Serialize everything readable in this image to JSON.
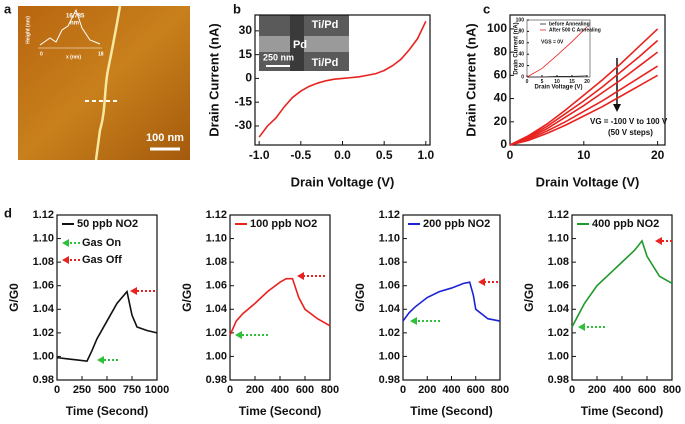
{
  "panel_a": {
    "label": "a",
    "inset_labels": [
      "Height (nm)",
      "16.785",
      "nm",
      "0",
      "x (nm)",
      "18"
    ],
    "scale_bar": "100 nm"
  },
  "panel_b_inset": {
    "labels": [
      "Ti/Pd",
      "Pd",
      "250 nm",
      "Ti/Pd"
    ]
  },
  "chart_data": [
    {
      "type": "line",
      "panel_label": "b",
      "xlabel": "Drain Voltage (V)",
      "ylabel": "Drain Current (nA)",
      "x": [
        -1.0,
        -0.9,
        -0.8,
        -0.7,
        -0.6,
        -0.5,
        -0.4,
        -0.3,
        -0.2,
        -0.1,
        0.0,
        0.1,
        0.2,
        0.3,
        0.4,
        0.5,
        0.6,
        0.7,
        0.8,
        0.9,
        1.0
      ],
      "series": [
        {
          "color": "#e8231f",
          "values": [
            -37,
            -30,
            -25,
            -18,
            -12,
            -8,
            -5,
            -3,
            -1.5,
            -0.5,
            0,
            0.5,
            1,
            2,
            3,
            5,
            8,
            12,
            18,
            25,
            36
          ]
        }
      ],
      "xlim": [
        -1.05,
        1.05
      ],
      "ylim": [
        -42,
        40
      ],
      "xticks": [
        {
          "value": -1.0,
          "label": "-1.0"
        },
        -0.5,
        {
          "value": 0,
          "label": "0.0"
        },
        0.5,
        {
          "value": 1.0,
          "label": "1.0"
        }
      ],
      "yticks": [
        -30,
        -15,
        0,
        15,
        30
      ]
    },
    {
      "type": "line",
      "panel_label": "c",
      "xlabel": "Drain Voltage (V)",
      "ylabel": "Drain Current (nA)",
      "x": [
        0,
        2.5,
        5,
        7.5,
        10,
        12.5,
        15,
        17.5,
        20
      ],
      "series": [
        {
          "color": "#e8231f",
          "values": [
            0,
            4,
            10,
            17,
            25,
            33,
            42,
            51,
            60
          ]
        },
        {
          "color": "#e8231f",
          "values": [
            0,
            5,
            12,
            20,
            29,
            38,
            48,
            58,
            68
          ]
        },
        {
          "color": "#e8231f",
          "values": [
            0,
            6,
            14,
            24,
            34,
            45,
            56,
            68,
            80
          ]
        },
        {
          "color": "#e8231f",
          "values": [
            0,
            7,
            16,
            27,
            38,
            50,
            63,
            76,
            90
          ]
        },
        {
          "color": "#e8231f",
          "values": [
            0,
            8,
            18,
            30,
            43,
            56,
            70,
            85,
            100
          ]
        }
      ],
      "xlim": [
        0,
        21
      ],
      "ylim": [
        0,
        112
      ],
      "xticks": [
        0,
        10,
        20
      ],
      "yticks": [
        0,
        20,
        40,
        60,
        80,
        100
      ],
      "annotations": [
        "VG = -100 V to 100 V",
        "(50 V steps)"
      ]
    },
    {
      "type": "line",
      "xlabel": "Drain Voltage (V)",
      "ylabel": "Drain Current (nA)",
      "x": [
        0,
        5,
        10,
        15,
        20
      ],
      "series": [
        {
          "name": "before Annealing",
          "color": "#222222",
          "values": [
            0,
            0,
            1,
            1,
            2
          ]
        },
        {
          "name": "After 500 C Annealing",
          "color": "#e8231f",
          "values": [
            0,
            15,
            38,
            62,
            88
          ]
        }
      ],
      "xlim": [
        0,
        21
      ],
      "ylim": [
        0,
        100
      ],
      "xticks": [
        0,
        5,
        10,
        15,
        20
      ],
      "yticks": [
        0,
        20,
        40,
        60,
        80,
        100
      ],
      "annotations": [
        "VGS = 0V"
      ]
    },
    {
      "type": "line",
      "panel_label": "d",
      "xlabel": "Time (Second)",
      "ylabel": "G/G0",
      "x": [
        0,
        100,
        200,
        300,
        350,
        400,
        500,
        600,
        700,
        750,
        800,
        900,
        1000
      ],
      "series": [
        {
          "name": "50 ppb NO2",
          "color": "#111111",
          "values": [
            0.999,
            0.998,
            0.997,
            0.996,
            1.005,
            1.015,
            1.03,
            1.045,
            1.055,
            1.035,
            1.025,
            1.022,
            1.02
          ]
        }
      ],
      "xlim": [
        0,
        1000
      ],
      "ylim": [
        0.98,
        1.12
      ],
      "xticks": [
        0,
        250,
        500,
        750,
        1000
      ],
      "yticks": [
        0.98,
        {
          "value": 1.0,
          "label": "1.00"
        },
        1.02,
        1.04,
        1.06,
        1.08,
        {
          "value": 1.1,
          "label": "1.10"
        },
        1.12
      ],
      "annotations": [
        "Gas On",
        "Gas Off"
      ]
    },
    {
      "type": "line",
      "xlabel": "Time (Second)",
      "ylabel": "G/G0",
      "x": [
        0,
        50,
        100,
        200,
        300,
        400,
        450,
        500,
        550,
        600,
        700,
        800
      ],
      "series": [
        {
          "name": "100 ppb NO2",
          "color": "#e8231f",
          "values": [
            1.018,
            1.03,
            1.036,
            1.045,
            1.055,
            1.063,
            1.066,
            1.066,
            1.05,
            1.04,
            1.032,
            1.026
          ]
        }
      ],
      "xlim": [
        0,
        800
      ],
      "ylim": [
        0.98,
        1.12
      ],
      "xticks": [
        0,
        200,
        400,
        600,
        800
      ],
      "yticks": [
        0.98,
        {
          "value": 1.0,
          "label": "1.00"
        },
        1.02,
        1.04,
        1.06,
        1.08,
        {
          "value": 1.1,
          "label": "1.10"
        },
        1.12
      ]
    },
    {
      "type": "line",
      "xlabel": "Time (Second)",
      "ylabel": "G/G0",
      "x": [
        0,
        50,
        100,
        200,
        300,
        400,
        500,
        550,
        580,
        600,
        700,
        800
      ],
      "series": [
        {
          "name": "200 ppb NO2",
          "color": "#1c22d6",
          "values": [
            1.03,
            1.037,
            1.042,
            1.05,
            1.055,
            1.058,
            1.062,
            1.063,
            1.052,
            1.04,
            1.032,
            1.03
          ]
        }
      ],
      "xlim": [
        0,
        800
      ],
      "ylim": [
        0.98,
        1.12
      ],
      "xticks": [
        0,
        200,
        400,
        600,
        800
      ],
      "yticks": [
        0.98,
        {
          "value": 1.0,
          "label": "1.00"
        },
        1.02,
        1.04,
        1.06,
        1.08,
        {
          "value": 1.1,
          "label": "1.10"
        },
        1.12
      ]
    },
    {
      "type": "line",
      "xlabel": "Time (Second)",
      "ylabel": "G/G0",
      "x": [
        0,
        50,
        100,
        200,
        300,
        400,
        500,
        560,
        600,
        700,
        800
      ],
      "series": [
        {
          "name": "400 ppb NO2",
          "color": "#1f9a2a",
          "values": [
            1.025,
            1.035,
            1.045,
            1.06,
            1.07,
            1.08,
            1.09,
            1.098,
            1.085,
            1.068,
            1.062
          ]
        }
      ],
      "xlim": [
        0,
        800
      ],
      "ylim": [
        0.98,
        1.12
      ],
      "xticks": [
        0,
        200,
        400,
        600,
        800
      ],
      "yticks": [
        0.98,
        {
          "value": 1.0,
          "label": "1.00"
        },
        1.02,
        1.04,
        1.06,
        1.08,
        {
          "value": 1.1,
          "label": "1.10"
        },
        1.12
      ]
    }
  ]
}
